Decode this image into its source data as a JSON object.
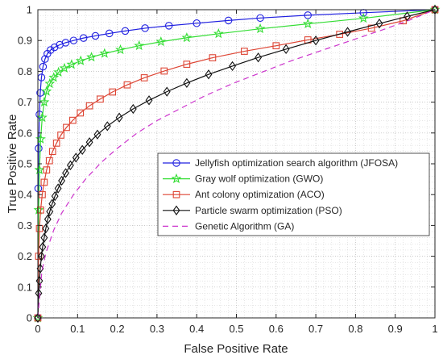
{
  "chart_data": {
    "type": "line",
    "title": "",
    "xlabel": "False Positive Rate",
    "ylabel": "True Positive Rate",
    "xlim": [
      0,
      1
    ],
    "ylim": [
      0,
      1
    ],
    "xticks": [
      "0",
      "0.1",
      "0.2",
      "0.3",
      "0.4",
      "0.5",
      "0.6",
      "0.7",
      "0.8",
      "0.9",
      "1"
    ],
    "yticks": [
      "0",
      "0.1",
      "0.2",
      "0.3",
      "0.4",
      "0.5",
      "0.6",
      "0.7",
      "0.8",
      "0.9",
      "1"
    ],
    "grid": "on (dotted, minor)",
    "legend_position": "lower-right",
    "series": [
      {
        "name": "Jellyfish optimization search algorithm (JFOSA)",
        "color": "#2020e0",
        "marker": "circle",
        "line": "solid",
        "x": [
          0,
          0.001,
          0.002,
          0.004,
          0.006,
          0.009,
          0.013,
          0.018,
          0.024,
          0.032,
          0.042,
          0.055,
          0.07,
          0.09,
          0.115,
          0.145,
          0.18,
          0.22,
          0.27,
          0.33,
          0.4,
          0.48,
          0.56,
          0.68,
          0.82,
          1.0
        ],
        "y": [
          0,
          0.42,
          0.55,
          0.66,
          0.73,
          0.78,
          0.815,
          0.84,
          0.857,
          0.869,
          0.878,
          0.886,
          0.893,
          0.9,
          0.908,
          0.915,
          0.923,
          0.931,
          0.94,
          0.948,
          0.956,
          0.965,
          0.973,
          0.982,
          0.99,
          1.0
        ]
      },
      {
        "name": "Gray wolf optimization (GWO)",
        "color": "#33dd33",
        "marker": "star",
        "line": "solid",
        "x": [
          0,
          0.002,
          0.004,
          0.007,
          0.011,
          0.016,
          0.022,
          0.03,
          0.04,
          0.052,
          0.067,
          0.085,
          0.108,
          0.135,
          0.168,
          0.208,
          0.255,
          0.31,
          0.375,
          0.455,
          0.56,
          0.68,
          0.82,
          1.0
        ],
        "y": [
          0,
          0.35,
          0.48,
          0.58,
          0.65,
          0.7,
          0.735,
          0.76,
          0.78,
          0.797,
          0.81,
          0.822,
          0.834,
          0.846,
          0.858,
          0.87,
          0.883,
          0.896,
          0.909,
          0.922,
          0.938,
          0.954,
          0.972,
          1.0
        ]
      },
      {
        "name": "Ant colony optimization (ACO)",
        "color": "#dd4433",
        "marker": "square",
        "line": "solid",
        "x": [
          0,
          0.002,
          0.004,
          0.007,
          0.011,
          0.016,
          0.022,
          0.029,
          0.037,
          0.047,
          0.058,
          0.072,
          0.088,
          0.107,
          0.13,
          0.157,
          0.188,
          0.225,
          0.268,
          0.318,
          0.375,
          0.44,
          0.52,
          0.6,
          0.68,
          0.76,
          0.84,
          0.92,
          1.0
        ],
        "y": [
          0,
          0.2,
          0.29,
          0.35,
          0.4,
          0.44,
          0.48,
          0.51,
          0.54,
          0.567,
          0.593,
          0.618,
          0.641,
          0.665,
          0.688,
          0.71,
          0.733,
          0.756,
          0.779,
          0.801,
          0.823,
          0.844,
          0.865,
          0.883,
          0.902,
          0.92,
          0.94,
          0.964,
          1.0
        ]
      },
      {
        "name": "Particle swarm optimization (PSO)",
        "color": "#111111",
        "marker": "diamond",
        "line": "solid",
        "x": [
          0,
          0.002,
          0.004,
          0.006,
          0.009,
          0.012,
          0.016,
          0.02,
          0.025,
          0.03,
          0.036,
          0.043,
          0.051,
          0.06,
          0.07,
          0.082,
          0.096,
          0.112,
          0.13,
          0.15,
          0.175,
          0.205,
          0.24,
          0.28,
          0.325,
          0.375,
          0.43,
          0.49,
          0.555,
          0.625,
          0.7,
          0.78,
          0.86,
          0.93,
          1.0
        ],
        "y": [
          0,
          0.08,
          0.12,
          0.16,
          0.2,
          0.23,
          0.26,
          0.29,
          0.32,
          0.345,
          0.37,
          0.395,
          0.42,
          0.445,
          0.47,
          0.495,
          0.52,
          0.545,
          0.57,
          0.595,
          0.622,
          0.65,
          0.678,
          0.706,
          0.734,
          0.762,
          0.79,
          0.817,
          0.845,
          0.872,
          0.9,
          0.928,
          0.955,
          0.978,
          1.0
        ]
      },
      {
        "name": "Genetic Algorithm (GA)",
        "color": "#cc33cc",
        "marker": "none",
        "line": "dashed",
        "x": [
          0,
          0.01,
          0.02,
          0.04,
          0.06,
          0.09,
          0.12,
          0.16,
          0.2,
          0.25,
          0.3,
          0.36,
          0.42,
          0.49,
          0.56,
          0.64,
          0.72,
          0.8,
          0.88,
          0.94,
          1.0
        ],
        "y": [
          0,
          0.15,
          0.21,
          0.285,
          0.34,
          0.4,
          0.45,
          0.505,
          0.55,
          0.6,
          0.64,
          0.68,
          0.72,
          0.76,
          0.795,
          0.835,
          0.87,
          0.905,
          0.94,
          0.968,
          1.0
        ]
      }
    ]
  }
}
